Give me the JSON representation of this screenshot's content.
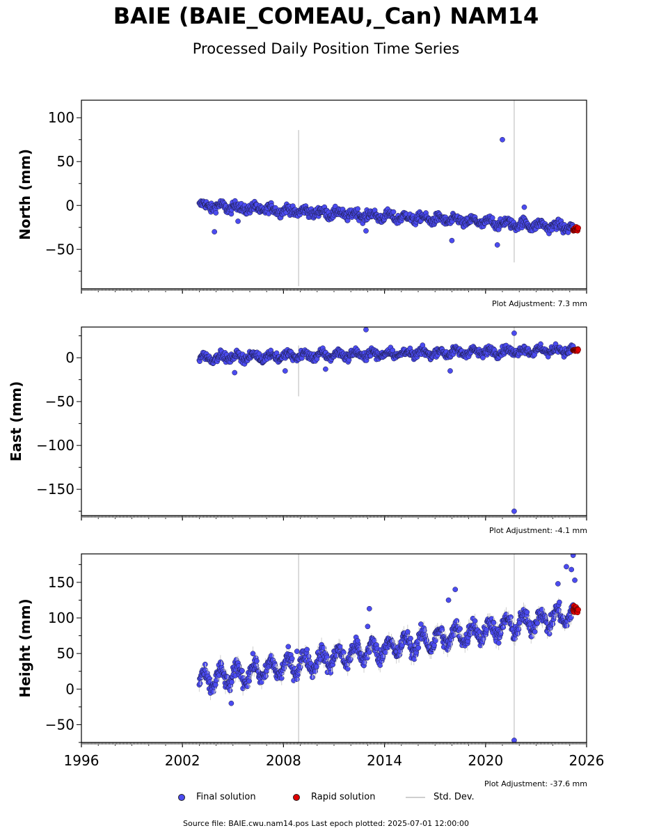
{
  "title": "BAIE (BAIE_COMEAU,_Can) NAM14",
  "subtitle": "Processed Daily Position Time Series",
  "legend": {
    "final": "Final solution",
    "rapid": "Rapid solution",
    "std": "Std. Dev."
  },
  "source": "Source file: BAIE.cwu.nam14.pos  Last epoch plotted: 2025-07-01 12:00:00",
  "colors": {
    "final": "#4b4bf0",
    "rapid": "#e00000",
    "std": "#cfcfcf"
  },
  "chart_data": [
    {
      "type": "scatter",
      "ylabel": "North (mm)",
      "adjustment": "Plot Adjustment: 7.3 mm",
      "xlim": [
        1996,
        2026
      ],
      "ylim": [
        -95,
        120
      ],
      "yticks": [
        -50,
        0,
        50,
        100
      ],
      "ytick_labels": [
        "−50",
        "0",
        "50",
        "100"
      ],
      "series": [
        {
          "name": "Final solution",
          "start": 2003.0,
          "end": 2025.2,
          "y_start": 0,
          "y_end": -25,
          "amp": 3,
          "spread": 6
        },
        {
          "name": "Rapid solution",
          "start": 2025.2,
          "end": 2025.5,
          "y_start": -26,
          "y_end": -28,
          "spread": 3
        }
      ],
      "outliers": [
        [
          2021.0,
          75
        ],
        [
          2020.7,
          -45
        ],
        [
          2022.3,
          -2
        ],
        [
          2003.9,
          -30
        ],
        [
          2012.9,
          -29
        ],
        [
          2018.0,
          -40
        ],
        [
          2005.3,
          -18
        ]
      ],
      "std_dev_lines": [
        [
          2008.9,
          -92,
          86
        ],
        [
          2021.7,
          -65,
          120
        ]
      ]
    },
    {
      "type": "scatter",
      "ylabel": "East (mm)",
      "adjustment": "Plot Adjustment: -4.1 mm",
      "xlim": [
        1996,
        2026
      ],
      "ylim": [
        -180,
        35
      ],
      "yticks": [
        -150,
        -100,
        -50,
        0
      ],
      "ytick_labels": [
        "−150",
        "−100",
        "−50",
        "0"
      ],
      "series": [
        {
          "name": "Final solution",
          "start": 2003.0,
          "end": 2025.2,
          "y_start": 0,
          "y_end": 9,
          "amp": 3,
          "spread": 5
        },
        {
          "name": "Rapid solution",
          "start": 2025.2,
          "end": 2025.5,
          "y_start": 8,
          "y_end": 9,
          "spread": 3
        }
      ],
      "outliers": [
        [
          2021.7,
          -175
        ],
        [
          2012.9,
          32
        ],
        [
          2021.7,
          28
        ],
        [
          2005.1,
          -17
        ],
        [
          2008.1,
          -15
        ],
        [
          2010.5,
          -13
        ],
        [
          2017.9,
          -15
        ]
      ],
      "std_dev_lines": [
        [
          2008.9,
          -44,
          14
        ],
        [
          2021.7,
          -180,
          35
        ]
      ]
    },
    {
      "type": "scatter",
      "ylabel": "Height (mm)",
      "adjustment": "Plot Adjustment: -37.6 mm",
      "xlim": [
        1996,
        2026
      ],
      "ylim": [
        -75,
        190
      ],
      "yticks": [
        -50,
        0,
        50,
        100,
        150
      ],
      "ytick_labels": [
        "−50",
        "0",
        "50",
        "100",
        "150"
      ],
      "xticks": [
        1996,
        2002,
        2008,
        2014,
        2020,
        2026
      ],
      "xtick_labels": [
        "1996",
        "2002",
        "2008",
        "2014",
        "2020",
        "2026"
      ],
      "series": [
        {
          "name": "Final solution",
          "start": 2003.0,
          "end": 2025.2,
          "y_start": 10,
          "y_end": 105,
          "amp": 12,
          "spread": 12
        },
        {
          "name": "Rapid solution",
          "start": 2025.2,
          "end": 2025.5,
          "y_start": 108,
          "y_end": 115,
          "spread": 6
        }
      ],
      "outliers": [
        [
          2025.2,
          188
        ],
        [
          2025.1,
          168
        ],
        [
          2024.8,
          172
        ],
        [
          2025.3,
          153
        ],
        [
          2024.3,
          148
        ],
        [
          2017.8,
          125
        ],
        [
          2018.2,
          140
        ],
        [
          2013.1,
          113
        ],
        [
          2004.9,
          -20
        ],
        [
          2021.7,
          -72
        ],
        [
          2008.8,
          53
        ],
        [
          2012.4,
          68
        ],
        [
          2013.0,
          88
        ]
      ],
      "std_dev_lines": [
        [
          2008.9,
          -75,
          190
        ],
        [
          2021.7,
          -75,
          190
        ]
      ]
    }
  ]
}
